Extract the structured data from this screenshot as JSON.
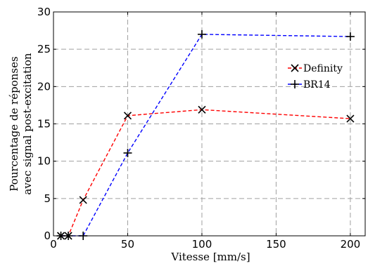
{
  "chart_data": {
    "type": "line",
    "title": "",
    "xlabel": "Vitesse [mm/s]",
    "ylabel_lines": [
      "Pourcentage de réponses",
      "avec signal post-excitation"
    ],
    "xlim": [
      0,
      210
    ],
    "ylim": [
      0,
      30
    ],
    "xticks": [
      0,
      50,
      100,
      150,
      200
    ],
    "yticks": [
      0,
      5,
      10,
      15,
      20,
      25,
      30
    ],
    "grid": true,
    "legend_position": "right",
    "series": [
      {
        "name": "Definity",
        "color": "#ff0000",
        "marker": "x",
        "x": [
          5,
          10,
          20,
          50,
          100,
          200
        ],
        "y": [
          0,
          0,
          4.8,
          16.1,
          16.9,
          15.7
        ]
      },
      {
        "name": "BR14",
        "color": "#0000ff",
        "marker": "plus",
        "x": [
          5,
          10,
          20,
          50,
          100,
          200
        ],
        "y": [
          0,
          0,
          0,
          11.1,
          27.0,
          26.7
        ]
      }
    ]
  }
}
